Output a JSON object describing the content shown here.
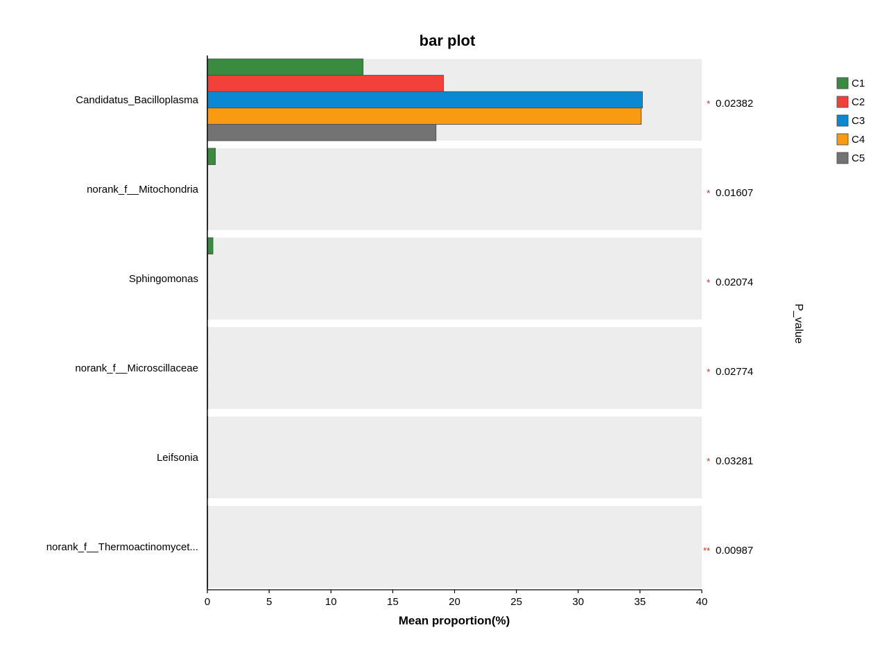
{
  "chart_data": {
    "type": "bar",
    "orientation": "horizontal",
    "title": "bar plot",
    "xlabel": "Mean proportion(%)",
    "right_axis_title": "P_value",
    "xlim": [
      0,
      40
    ],
    "xticks": [
      0,
      5,
      10,
      15,
      20,
      25,
      30,
      35,
      40
    ],
    "categories": [
      "Candidatus_Bacilloplasma",
      "norank_f__Mitochondria",
      "Sphingomonas",
      "norank_f__Microscillaceae",
      "Leifsonia",
      "norank_f__Thermoactinomycet..."
    ],
    "series": [
      {
        "name": "C1",
        "color": "#3a8a3f",
        "values": [
          12.6,
          0.65,
          0.45,
          0.03,
          0.02,
          0.02
        ]
      },
      {
        "name": "C2",
        "color": "#f2413a",
        "values": [
          19.1,
          0.02,
          0.02,
          0.02,
          0.01,
          0.01
        ]
      },
      {
        "name": "C3",
        "color": "#0a88d2",
        "values": [
          35.2,
          0.03,
          0.02,
          0.02,
          0.01,
          0.01
        ]
      },
      {
        "name": "C4",
        "color": "#f89b10",
        "values": [
          35.1,
          0.02,
          0.02,
          0.02,
          0.01,
          0.01
        ]
      },
      {
        "name": "C5",
        "color": "#737373",
        "values": [
          18.5,
          0.02,
          0.02,
          0.02,
          0.01,
          0.01
        ]
      }
    ],
    "p_values": [
      "0.02382",
      "0.01607",
      "0.02074",
      "0.02774",
      "0.03281",
      "0.00987"
    ],
    "significance": [
      "*",
      "*",
      "*",
      "*",
      "*",
      "**"
    ],
    "legend_position": "top-right",
    "grid": false
  }
}
